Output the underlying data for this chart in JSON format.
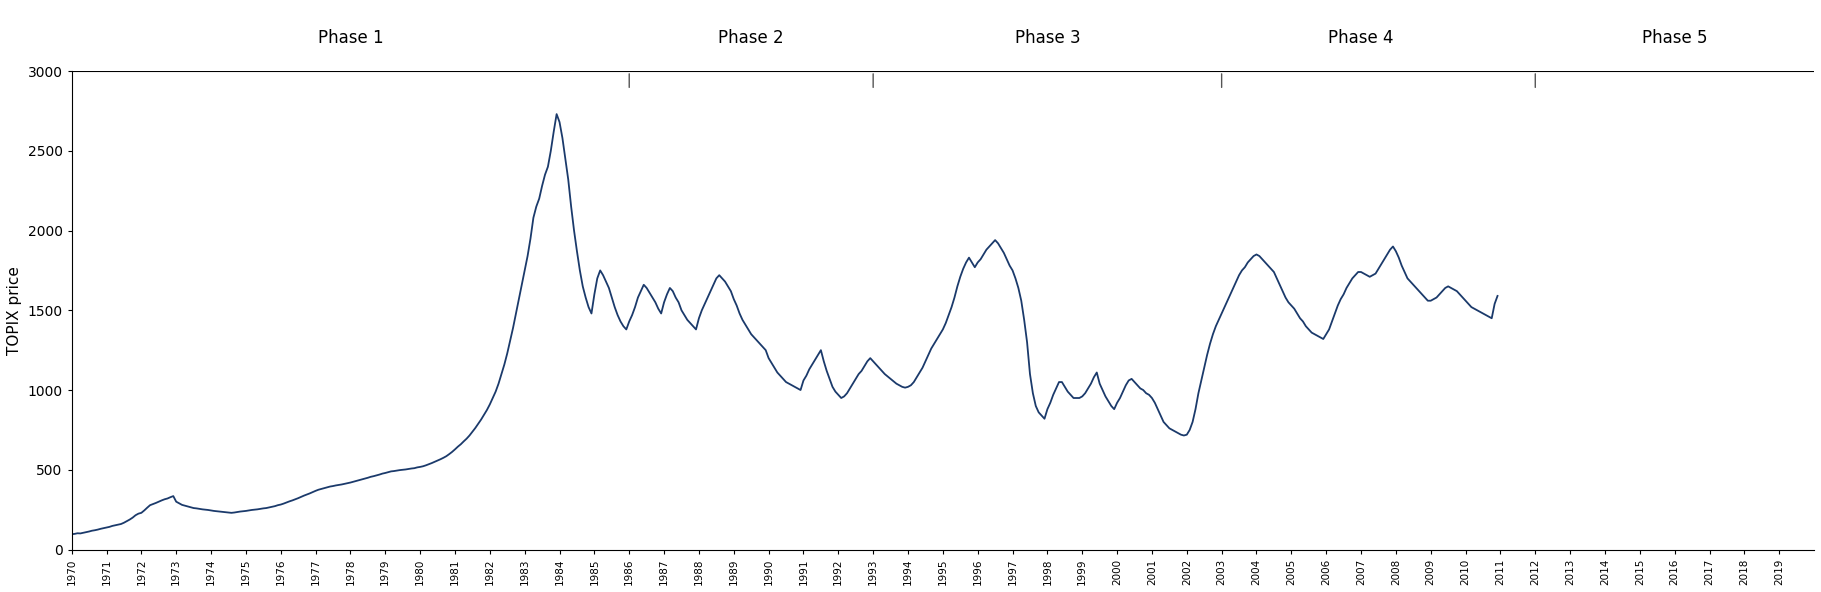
{
  "ylabel": "TOPIX price",
  "line_color": "#1b3a6b",
  "line_width": 1.3,
  "background_color": "#ffffff",
  "ylim": [
    0,
    3000
  ],
  "yticks": [
    0,
    500,
    1000,
    1500,
    2000,
    2500,
    3000
  ],
  "xlim_start": 1970,
  "xlim_end": 2020,
  "phases": [
    {
      "label": "Phase 1",
      "x_center": 1978.0,
      "x_tick": 1986.0
    },
    {
      "label": "Phase 2",
      "x_center": 1989.5,
      "x_tick": 1993.0
    },
    {
      "label": "Phase 3",
      "x_center": 1998.0,
      "x_tick": 2003.0
    },
    {
      "label": "Phase 4",
      "x_center": 2007.0,
      "x_tick": 2012.0
    },
    {
      "label": "Phase 5",
      "x_center": 2016.0,
      "x_tick": null
    }
  ],
  "topix_monthly": [
    96,
    98,
    102,
    101,
    105,
    109,
    113,
    118,
    121,
    125,
    130,
    134,
    138,
    142,
    148,
    152,
    156,
    160,
    168,
    178,
    188,
    200,
    215,
    225,
    230,
    245,
    262,
    278,
    285,
    292,
    300,
    308,
    315,
    320,
    328,
    335,
    300,
    290,
    280,
    275,
    270,
    265,
    260,
    258,
    255,
    252,
    250,
    248,
    245,
    242,
    240,
    238,
    236,
    234,
    232,
    230,
    232,
    235,
    238,
    240,
    242,
    245,
    248,
    250,
    252,
    255,
    258,
    260,
    264,
    268,
    272,
    278,
    282,
    288,
    295,
    302,
    308,
    315,
    322,
    330,
    338,
    345,
    352,
    360,
    368,
    375,
    380,
    385,
    390,
    395,
    398,
    402,
    405,
    408,
    412,
    416,
    420,
    425,
    430,
    435,
    440,
    445,
    450,
    456,
    460,
    465,
    470,
    476,
    480,
    485,
    490,
    492,
    495,
    498,
    500,
    502,
    505,
    508,
    510,
    515,
    518,
    522,
    528,
    535,
    542,
    550,
    558,
    566,
    575,
    585,
    598,
    612,
    628,
    645,
    660,
    678,
    695,
    715,
    738,
    762,
    788,
    815,
    845,
    875,
    910,
    950,
    990,
    1040,
    1100,
    1160,
    1230,
    1310,
    1390,
    1480,
    1570,
    1660,
    1750,
    1840,
    1950,
    2080,
    2150,
    2200,
    2280,
    2350,
    2400,
    2500,
    2620,
    2730,
    2680,
    2580,
    2450,
    2320,
    2150,
    2000,
    1870,
    1750,
    1650,
    1580,
    1520,
    1480,
    1600,
    1700,
    1750,
    1720,
    1680,
    1640,
    1580,
    1520,
    1470,
    1430,
    1400,
    1380,
    1430,
    1470,
    1520,
    1580,
    1620,
    1660,
    1640,
    1610,
    1580,
    1550,
    1510,
    1480,
    1550,
    1600,
    1640,
    1620,
    1580,
    1550,
    1500,
    1470,
    1440,
    1420,
    1400,
    1380,
    1450,
    1500,
    1540,
    1580,
    1620,
    1660,
    1700,
    1720,
    1700,
    1680,
    1650,
    1620,
    1570,
    1530,
    1480,
    1440,
    1410,
    1380,
    1350,
    1330,
    1310,
    1290,
    1270,
    1250,
    1200,
    1170,
    1140,
    1110,
    1090,
    1070,
    1050,
    1040,
    1030,
    1020,
    1010,
    1000,
    1060,
    1090,
    1130,
    1160,
    1190,
    1220,
    1250,
    1180,
    1120,
    1070,
    1020,
    990,
    970,
    950,
    960,
    980,
    1010,
    1040,
    1070,
    1100,
    1120,
    1150,
    1180,
    1200,
    1180,
    1160,
    1140,
    1120,
    1100,
    1085,
    1070,
    1055,
    1040,
    1030,
    1020,
    1015,
    1020,
    1030,
    1050,
    1080,
    1110,
    1140,
    1180,
    1220,
    1260,
    1290,
    1320,
    1350,
    1380,
    1420,
    1470,
    1520,
    1580,
    1650,
    1710,
    1760,
    1800,
    1830,
    1800,
    1770,
    1800,
    1820,
    1850,
    1880,
    1900,
    1920,
    1940,
    1920,
    1890,
    1860,
    1820,
    1780,
    1750,
    1700,
    1640,
    1560,
    1440,
    1300,
    1100,
    980,
    900,
    860,
    840,
    820,
    880,
    920,
    970,
    1010,
    1050,
    1050,
    1020,
    990,
    970,
    950,
    950,
    950,
    960,
    980,
    1010,
    1040,
    1080,
    1110,
    1040,
    1000,
    960,
    930,
    900,
    880,
    920,
    950,
    990,
    1030,
    1060,
    1070,
    1050,
    1030,
    1010,
    1000,
    980,
    970,
    950,
    920,
    880,
    840,
    800,
    780,
    760,
    750,
    740,
    730,
    720,
    715,
    720,
    750,
    800,
    880,
    980,
    1060,
    1140,
    1220,
    1290,
    1350,
    1400,
    1440,
    1480,
    1520,
    1560,
    1600,
    1640,
    1680,
    1720,
    1750,
    1770,
    1800,
    1820,
    1840,
    1850,
    1840,
    1820,
    1800,
    1780,
    1760,
    1740,
    1700,
    1660,
    1620,
    1580,
    1550,
    1530,
    1510,
    1480,
    1450,
    1430,
    1400,
    1380,
    1360,
    1350,
    1340,
    1330,
    1320,
    1350,
    1380,
    1430,
    1480,
    1530,
    1570,
    1600,
    1640,
    1670,
    1700,
    1720,
    1740,
    1740,
    1730,
    1720,
    1710,
    1720,
    1730,
    1760,
    1790,
    1820,
    1850,
    1880,
    1900,
    1870,
    1830,
    1780,
    1740,
    1700,
    1680,
    1660,
    1640,
    1620,
    1600,
    1580,
    1560,
    1560,
    1570,
    1580,
    1600,
    1620,
    1640,
    1650,
    1640,
    1630,
    1620,
    1600,
    1580,
    1560,
    1540,
    1520,
    1510,
    1500,
    1490,
    1480,
    1470,
    1460,
    1450,
    1540,
    1590
  ]
}
